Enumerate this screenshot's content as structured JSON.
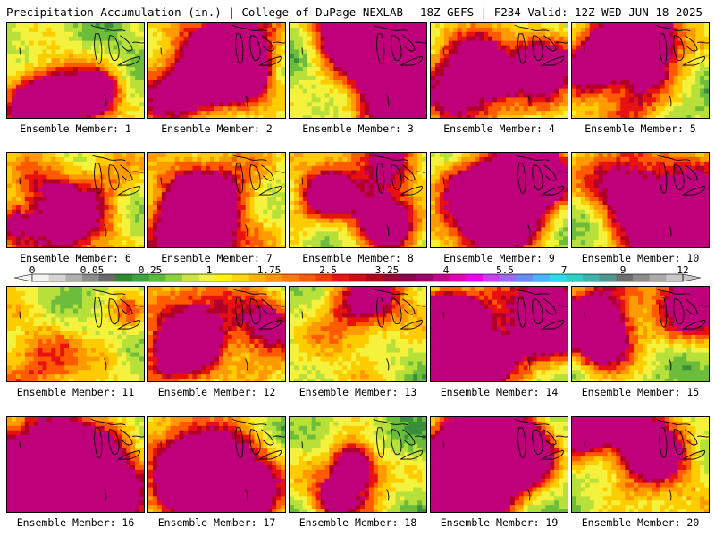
{
  "header": {
    "title_left": "Precipitation Accumulation (in.) | College of DuPage NEXLAB",
    "title_right": "18Z GEFS | F234 Valid: 12Z WED JUN 18 2025"
  },
  "panels": [
    {
      "label": "Ensemble Member: 1"
    },
    {
      "label": "Ensemble Member: 2"
    },
    {
      "label": "Ensemble Member: 3"
    },
    {
      "label": "Ensemble Member: 4"
    },
    {
      "label": "Ensemble Member: 5"
    },
    {
      "label": "Ensemble Member: 6"
    },
    {
      "label": "Ensemble Member: 7"
    },
    {
      "label": "Ensemble Member: 8"
    },
    {
      "label": "Ensemble Member: 9"
    },
    {
      "label": "Ensemble Member: 10"
    },
    {
      "label": "Ensemble Member: 11"
    },
    {
      "label": "Ensemble Member: 12"
    },
    {
      "label": "Ensemble Member: 13"
    },
    {
      "label": "Ensemble Member: 14"
    },
    {
      "label": "Ensemble Member: 15"
    },
    {
      "label": "Ensemble Member: 16"
    },
    {
      "label": "Ensemble Member: 17"
    },
    {
      "label": "Ensemble Member: 18"
    },
    {
      "label": "Ensemble Member: 19"
    },
    {
      "label": "Ensemble Member: 20"
    }
  ],
  "colorbar": {
    "tick_labels": [
      "0",
      "0.05",
      "0.25",
      "1",
      "1.75",
      "2.5",
      "3.25",
      "4",
      "5.5",
      "7",
      "9",
      "12"
    ],
    "colors": [
      "#f2f2f2",
      "#d4d4d4",
      "#b0b0b0",
      "#8c8c8c",
      "#6a6a6a",
      "#2e8b2e",
      "#3ea53e",
      "#5abb3a",
      "#8cd23c",
      "#c8e63c",
      "#f2f240",
      "#fff400",
      "#ffd700",
      "#ffb400",
      "#ff9600",
      "#ff7800",
      "#ff5a00",
      "#ff3800",
      "#f01010",
      "#d20a14",
      "#b4001e",
      "#9a0032",
      "#8c0050",
      "#a0006e",
      "#c8008c",
      "#e600b4",
      "#f000f0",
      "#c840f0",
      "#9a6af0",
      "#6a8cf5",
      "#4ab4ff",
      "#28dcf0",
      "#28d2c8",
      "#3cb4aa",
      "#50968c",
      "#6e6e6e",
      "#8c8c8c",
      "#aaaaaa",
      "#c8c8c8"
    ]
  }
}
